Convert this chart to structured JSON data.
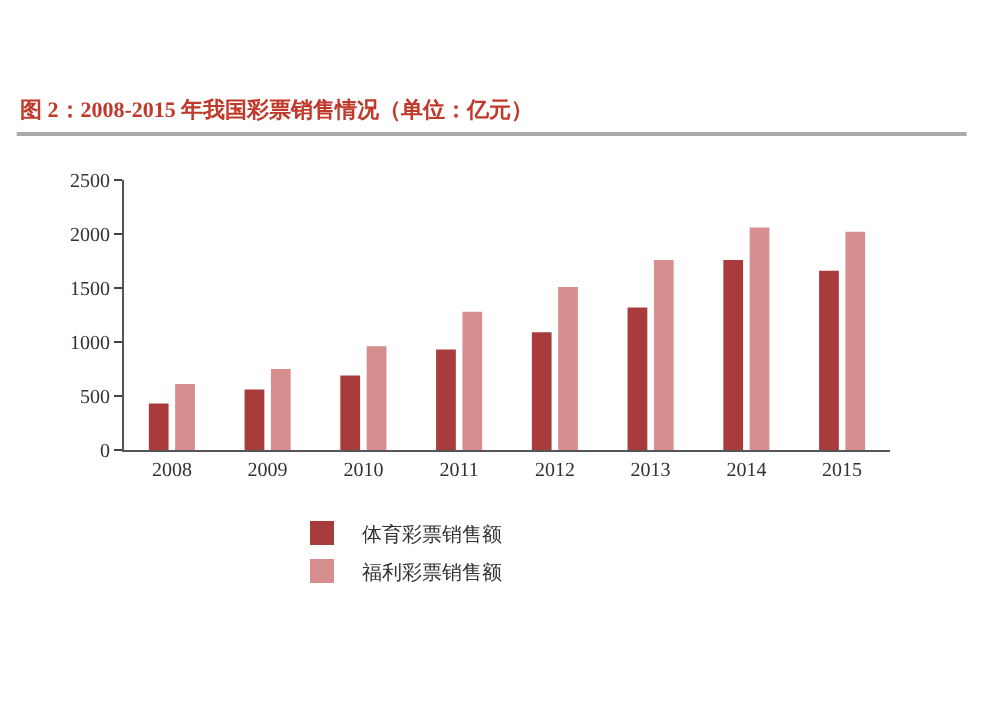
{
  "chart_data": {
    "type": "bar",
    "title": "图 2：2008-2015 年我国彩票销售情况（单位：亿元）",
    "categories": [
      "2008",
      "2009",
      "2010",
      "2011",
      "2012",
      "2013",
      "2014",
      "2015"
    ],
    "series": [
      {
        "name": "体育彩票销售额",
        "color": "#a83c3c",
        "values": [
          430,
          560,
          690,
          930,
          1090,
          1320,
          1760,
          1660
        ]
      },
      {
        "name": "福利彩票销售额",
        "color": "#d68e8e",
        "values": [
          610,
          750,
          960,
          1280,
          1510,
          1760,
          2060,
          2020
        ]
      }
    ],
    "ylim": [
      0,
      2500
    ],
    "yticks": [
      0,
      500,
      1000,
      1500,
      2000,
      2500
    ],
    "legend": "bottom"
  }
}
